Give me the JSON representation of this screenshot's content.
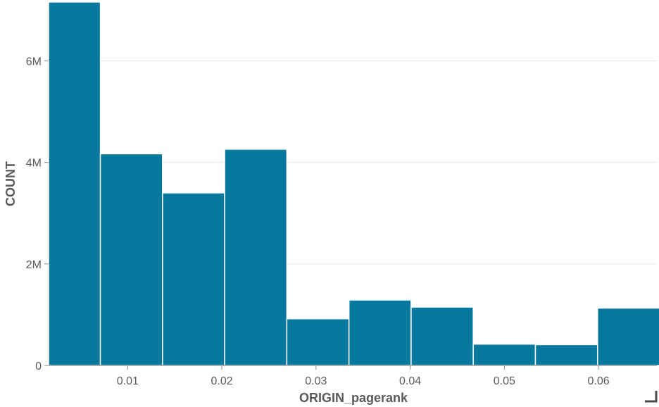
{
  "chart_data": {
    "type": "bar",
    "subtype": "histogram",
    "xlabel": "ORIGIN_pagerank",
    "ylabel": "COUNT",
    "bar_color": "#07799e",
    "grid": true,
    "xlim": [
      0.0016,
      0.0662
    ],
    "ylim": [
      0,
      7200000
    ],
    "x_ticks": [
      {
        "value": 0.01,
        "label": "0.01"
      },
      {
        "value": 0.02,
        "label": "0.02"
      },
      {
        "value": 0.03,
        "label": "0.03"
      },
      {
        "value": 0.04,
        "label": "0.04"
      },
      {
        "value": 0.05,
        "label": "0.05"
      },
      {
        "value": 0.06,
        "label": "0.06"
      }
    ],
    "y_ticks": [
      {
        "value": 0,
        "label": "0"
      },
      {
        "value": 2000000,
        "label": "2M"
      },
      {
        "value": 4000000,
        "label": "4M"
      },
      {
        "value": 6000000,
        "label": "6M"
      }
    ],
    "bins": [
      {
        "x0": 0.0016,
        "x1": 0.0071,
        "count": 7160000
      },
      {
        "x0": 0.0071,
        "x1": 0.0137,
        "count": 4170000
      },
      {
        "x0": 0.0137,
        "x1": 0.0203,
        "count": 3400000
      },
      {
        "x0": 0.0203,
        "x1": 0.0269,
        "count": 4260000
      },
      {
        "x0": 0.0269,
        "x1": 0.0335,
        "count": 920000
      },
      {
        "x0": 0.0335,
        "x1": 0.0401,
        "count": 1290000
      },
      {
        "x0": 0.0401,
        "x1": 0.0467,
        "count": 1150000
      },
      {
        "x0": 0.0467,
        "x1": 0.0533,
        "count": 420000
      },
      {
        "x0": 0.0533,
        "x1": 0.0599,
        "count": 410000
      },
      {
        "x0": 0.0599,
        "x1": 0.0665,
        "count": 1130000
      }
    ]
  }
}
